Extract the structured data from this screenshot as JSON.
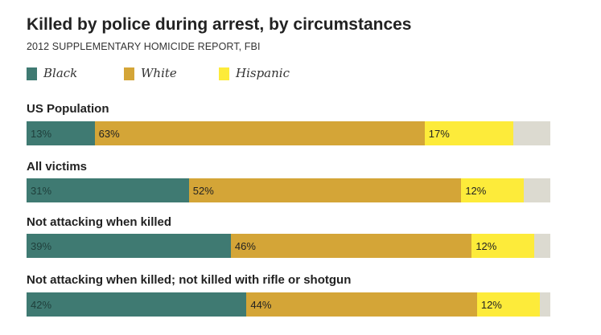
{
  "chart_data": {
    "type": "bar",
    "stacked": true,
    "orientation": "horizontal",
    "title": "Killed by police during arrest, by circumstances",
    "subtitle": "2012 SUPPLEMENTARY HOMICIDE REPORT, FBI",
    "unit": "%",
    "xlim": [
      0,
      100
    ],
    "categories": [
      "US Population",
      "All victims",
      "Not attacking when killed",
      "Not attacking when killed; not killed with rifle or shotgun"
    ],
    "series": [
      {
        "name": "Black",
        "color": "#3f7a72",
        "values": [
          13,
          31,
          39,
          42
        ],
        "labels": [
          "13%",
          "31%",
          "39%",
          "42%"
        ]
      },
      {
        "name": "White",
        "color": "#d4a537",
        "values": [
          63,
          52,
          46,
          44
        ],
        "labels": [
          "63%",
          "52%",
          "46%",
          "44%"
        ]
      },
      {
        "name": "Hispanic",
        "color": "#fdeb3a",
        "values": [
          17,
          12,
          12,
          12
        ],
        "labels": [
          "17%",
          "12%",
          "12%",
          "12%"
        ]
      }
    ],
    "remainder_color": "#dcdad0",
    "legend_position": "top-left"
  }
}
